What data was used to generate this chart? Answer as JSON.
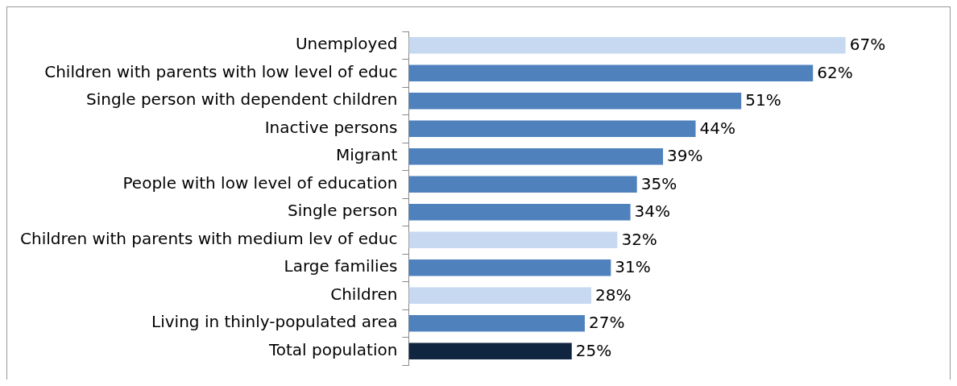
{
  "chart_data": {
    "type": "bar",
    "orientation": "horizontal",
    "categories": [
      "Unemployed",
      "Children with parents with low level of educ",
      "Single person with dependent children",
      "Inactive persons",
      "Migrant",
      "People with low level of education",
      "Single person",
      "Children with parents with medium lev of educ",
      "Large families",
      "Children",
      "Living in thinly-populated area",
      "Total population"
    ],
    "values": [
      67,
      62,
      51,
      44,
      39,
      35,
      34,
      32,
      31,
      28,
      27,
      25
    ],
    "colors": [
      "#c6d9f1",
      "#4f81bd",
      "#4f81bd",
      "#4f81bd",
      "#4f81bd",
      "#4f81bd",
      "#4f81bd",
      "#c6d9f1",
      "#4f81bd",
      "#c6d9f1",
      "#4f81bd",
      "#10253f"
    ],
    "value_labels": [
      "67%",
      "62%",
      "51%",
      "44%",
      "39%",
      "35%",
      "34%",
      "32%",
      "31%",
      "28%",
      "27%",
      "25%"
    ],
    "legend": false
  }
}
